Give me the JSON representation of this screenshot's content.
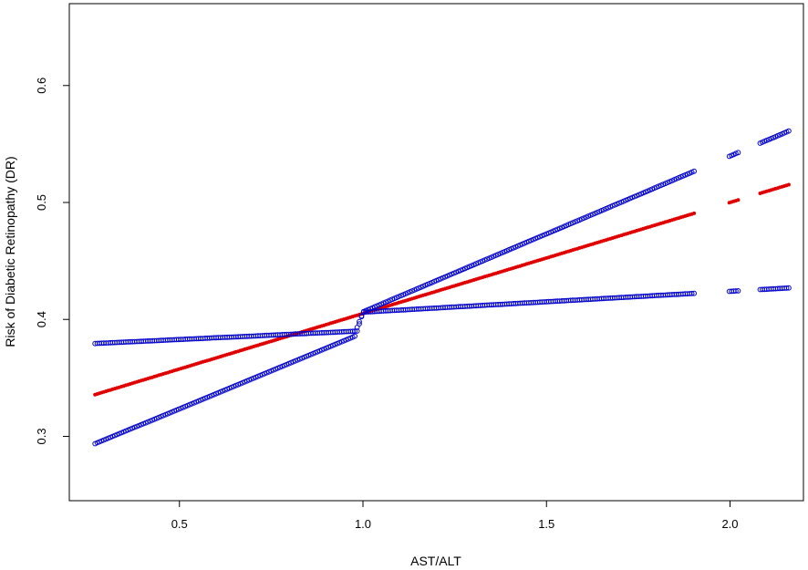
{
  "chart_data": {
    "type": "scatter",
    "title": "",
    "xlabel": "AST/ALT",
    "ylabel": "Risk of Diabetic Retinopathy (DR)",
    "xlim": [
      0.2,
      2.2
    ],
    "ylim": [
      0.245,
      0.67
    ],
    "xticks": [
      0.5,
      1.0,
      1.5,
      2.0
    ],
    "xtick_labels": [
      "0.5",
      "1.0",
      "1.5",
      "2.0"
    ],
    "yticks": [
      0.3,
      0.4,
      0.5,
      0.6
    ],
    "ytick_labels": [
      "0.3",
      "0.4",
      "0.5",
      "0.6"
    ],
    "grid": false,
    "x": [
      0.27,
      0.29,
      0.31,
      0.33,
      0.35,
      0.38,
      0.41,
      0.44,
      0.47,
      0.5,
      0.53,
      0.56,
      0.59,
      0.62,
      0.65,
      0.68,
      0.71,
      0.74,
      0.77,
      0.8,
      0.83,
      0.86,
      0.89,
      0.92,
      0.95,
      0.98,
      1.0,
      1.03,
      1.06,
      1.09,
      1.12,
      1.15,
      1.18,
      1.21,
      1.24,
      1.27,
      1.3,
      1.33,
      1.36,
      1.39,
      1.42,
      1.45,
      1.48,
      1.5,
      1.54,
      1.56,
      1.58,
      1.6,
      1.62,
      1.64,
      1.66,
      1.68,
      1.7,
      1.72,
      1.74,
      1.76,
      1.78,
      1.8,
      1.82,
      1.84,
      1.86,
      1.88,
      1.9,
      2.0,
      2.02,
      2.08,
      2.1,
      2.12,
      2.14,
      2.16
    ],
    "series": [
      {
        "name": "",
        "role": "estimate",
        "color": "#e00000",
        "marker": "filled",
        "values": [
          0.3357,
          0.3376,
          0.3395,
          0.3414,
          0.3433,
          0.3462,
          0.349,
          0.3519,
          0.3547,
          0.3576,
          0.3604,
          0.3633,
          0.3661,
          0.369,
          0.3718,
          0.3747,
          0.3775,
          0.3804,
          0.3832,
          0.3861,
          0.3889,
          0.3918,
          0.3946,
          0.3975,
          0.4003,
          0.4032,
          0.405,
          0.4079,
          0.4107,
          0.4136,
          0.4164,
          0.4193,
          0.4221,
          0.425,
          0.4278,
          0.4307,
          0.4335,
          0.4364,
          0.4392,
          0.4421,
          0.4449,
          0.4478,
          0.4506,
          0.4525,
          0.4563,
          0.4582,
          0.4601,
          0.462,
          0.4639,
          0.4658,
          0.4677,
          0.4696,
          0.4715,
          0.4734,
          0.4753,
          0.4772,
          0.4791,
          0.481,
          0.4829,
          0.4848,
          0.4867,
          0.4886,
          0.4905,
          0.5,
          0.5019,
          0.5076,
          0.5095,
          0.5114,
          0.5133,
          0.5152
        ]
      },
      {
        "name": "",
        "role": "upper bound",
        "color": "#0000cc",
        "marker": "open",
        "values": [
          0.2937,
          0.2963,
          0.2989,
          0.3015,
          0.3041,
          0.308,
          0.3118,
          0.3157,
          0.3196,
          0.3235,
          0.3274,
          0.3313,
          0.3352,
          0.3391,
          0.343,
          0.3469,
          0.3508,
          0.3547,
          0.3586,
          0.3625,
          0.3664,
          0.3703,
          0.3742,
          0.3781,
          0.382,
          0.3859,
          0.4065,
          0.4105,
          0.4145,
          0.4185,
          0.4225,
          0.4265,
          0.4305,
          0.4345,
          0.4385,
          0.4425,
          0.4465,
          0.4505,
          0.4545,
          0.4585,
          0.4625,
          0.4665,
          0.4705,
          0.4731,
          0.4784,
          0.4811,
          0.4837,
          0.4864,
          0.4891,
          0.4917,
          0.4944,
          0.4971,
          0.4997,
          0.5024,
          0.5051,
          0.5077,
          0.5104,
          0.5131,
          0.5157,
          0.5184,
          0.5211,
          0.5237,
          0.5264,
          0.5397,
          0.5424,
          0.5504,
          0.5531,
          0.5557,
          0.5584,
          0.5611
        ]
      },
      {
        "name": "",
        "role": "lower bound",
        "color": "#0000cc",
        "marker": "open",
        "values": [
          0.3794,
          0.3797,
          0.38,
          0.3803,
          0.3806,
          0.381,
          0.3815,
          0.3819,
          0.3824,
          0.3828,
          0.3833,
          0.3837,
          0.3842,
          0.3846,
          0.385,
          0.3855,
          0.3859,
          0.3864,
          0.3868,
          0.3873,
          0.3877,
          0.3882,
          0.3886,
          0.389,
          0.3895,
          0.3899,
          0.4062,
          0.4067,
          0.4073,
          0.4078,
          0.4083,
          0.4089,
          0.4094,
          0.4099,
          0.4105,
          0.411,
          0.4115,
          0.4121,
          0.4126,
          0.4131,
          0.4137,
          0.4142,
          0.4147,
          0.4151,
          0.4158,
          0.4162,
          0.4165,
          0.4169,
          0.4172,
          0.4176,
          0.418,
          0.4183,
          0.4187,
          0.419,
          0.4194,
          0.4197,
          0.4201,
          0.4205,
          0.4208,
          0.4212,
          0.4215,
          0.4219,
          0.4222,
          0.424,
          0.4244,
          0.4255,
          0.4258,
          0.4262,
          0.4265,
          0.4269
        ]
      }
    ]
  }
}
